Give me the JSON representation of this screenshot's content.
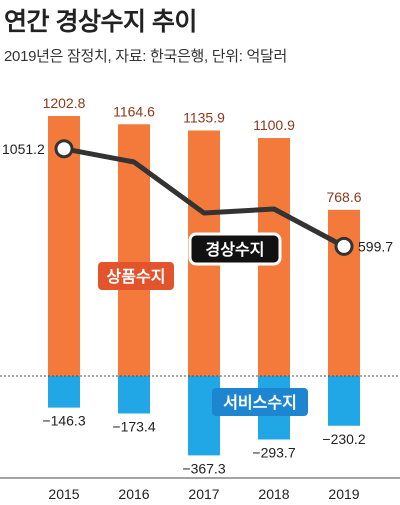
{
  "title": "연간 경상수지 추이",
  "subtitle": "2019년은 잠정치, 자료: 한국은행, 단위: 억달러",
  "colors": {
    "goods": "#f47a3c",
    "services": "#22a7e6",
    "current": "#333333",
    "goods_label_bg": "#e3532c",
    "services_label_bg": "#1e86d1",
    "value_text": "#8b3a1a"
  },
  "chart_data": {
    "type": "bar+line",
    "categories": [
      "2015",
      "2016",
      "2017",
      "2018",
      "2019"
    ],
    "series": [
      {
        "name": "상품수지",
        "type": "bar",
        "values": [
          1202.8,
          1164.6,
          1135.9,
          1100.9,
          768.6
        ]
      },
      {
        "name": "서비스수지",
        "type": "bar",
        "values": [
          -146.3,
          -173.4,
          -367.3,
          -293.7,
          -230.2
        ]
      },
      {
        "name": "경상수지",
        "type": "line",
        "values": [
          1051.2,
          null,
          null,
          null,
          599.7
        ]
      }
    ],
    "labels": {
      "goods": [
        "1202.8",
        "1164.6",
        "1135.9",
        "1100.9",
        "768.6"
      ],
      "services": [
        "−146.3",
        "−173.4",
        "−367.3",
        "−293.7",
        "−230.2"
      ],
      "current_first": "1051.2",
      "current_last": "599.7"
    },
    "ylim": [
      -400,
      1300
    ],
    "grid": false
  }
}
